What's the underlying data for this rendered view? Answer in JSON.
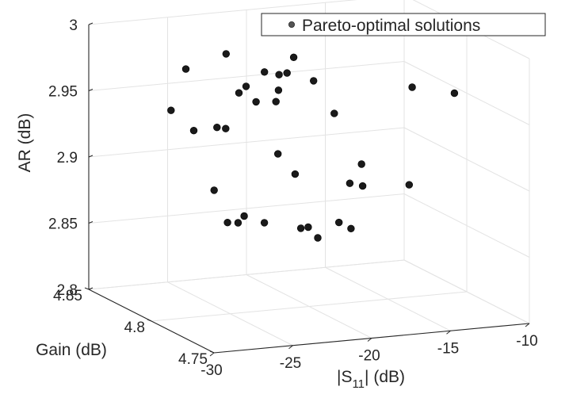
{
  "chart_data": {
    "type": "scatter",
    "projection": "3d",
    "xlabel": "|S11| (dB)",
    "ylabel": "Gain (dB)",
    "zlabel": "AR (dB)",
    "xlabel_parts": {
      "main": "|S",
      "sub": "11",
      "tail": "| (dB)"
    },
    "xlim": [
      -30,
      -10
    ],
    "ylim": [
      4.75,
      4.85
    ],
    "zlim": [
      2.8,
      3.0
    ],
    "x_ticks": [
      "-30",
      "-25",
      "-20",
      "-15",
      "-10"
    ],
    "y_ticks": [
      "4.75",
      "4.8",
      "4.85"
    ],
    "z_ticks": [
      "2.8",
      "2.85",
      "2.9",
      "2.95",
      "3"
    ],
    "grid": true,
    "legend": {
      "position": "top-right",
      "entries": [
        "Pareto-optimal solutions"
      ]
    },
    "series": [
      {
        "name": "Pareto-optimal solutions",
        "color": "#1a1a1a",
        "points": [
          {
            "x": -20.1,
            "y": 4.811,
            "z": 2.983
          },
          {
            "x": -24.4,
            "y": 4.769,
            "z": 2.983
          },
          {
            "x": -16.1,
            "y": 4.85,
            "z": 2.983
          },
          {
            "x": -26.7,
            "y": 4.814,
            "z": 2.98
          },
          {
            "x": -22.3,
            "y": 4.795,
            "z": 2.98
          },
          {
            "x": -19.0,
            "y": 4.809,
            "z": 2.965
          },
          {
            "x": -22.8,
            "y": 4.831,
            "z": 2.979
          },
          {
            "x": -25.4,
            "y": 4.788,
            "z": 2.973
          },
          {
            "x": -21.0,
            "y": 4.805,
            "z": 2.975
          },
          {
            "x": -23.2,
            "y": 4.81,
            "z": 2.965
          },
          {
            "x": -21.4,
            "y": 4.818,
            "z": 2.97
          },
          {
            "x": -27.8,
            "y": 4.812,
            "z": 2.951
          },
          {
            "x": -18.4,
            "y": 4.8,
            "z": 2.944
          },
          {
            "x": -23.6,
            "y": 4.797,
            "z": 2.96
          },
          {
            "x": -22.1,
            "y": 4.8,
            "z": 2.957
          },
          {
            "x": -13.7,
            "y": 4.797,
            "z": 2.96
          },
          {
            "x": -11.5,
            "y": 4.791,
            "z": 2.956
          },
          {
            "x": -25.6,
            "y": 4.803,
            "z": 2.94
          },
          {
            "x": -26.2,
            "y": 4.814,
            "z": 2.933
          },
          {
            "x": -23.3,
            "y": 4.825,
            "z": 2.926
          },
          {
            "x": -21.6,
            "y": 4.791,
            "z": 2.906
          },
          {
            "x": -18.1,
            "y": 4.782,
            "z": 2.914
          },
          {
            "x": -21.5,
            "y": 4.806,
            "z": 2.914
          },
          {
            "x": -26.1,
            "y": 4.799,
            "z": 2.895
          },
          {
            "x": -24.9,
            "y": 4.795,
            "z": 2.871
          },
          {
            "x": -23.9,
            "y": 4.816,
            "z": 2.86
          },
          {
            "x": -12.7,
            "y": 4.812,
            "z": 2.878
          },
          {
            "x": -17.0,
            "y": 4.795,
            "z": 2.89
          },
          {
            "x": -16.7,
            "y": 4.809,
            "z": 2.885
          },
          {
            "x": -21.0,
            "y": 4.794,
            "z": 2.863
          },
          {
            "x": -21.8,
            "y": 4.813,
            "z": 2.859
          },
          {
            "x": -26.1,
            "y": 4.775,
            "z": 2.887
          },
          {
            "x": -20.4,
            "y": 4.788,
            "z": 2.858
          },
          {
            "x": -19.5,
            "y": 4.807,
            "z": 2.856
          },
          {
            "x": -17.5,
            "y": 4.798,
            "z": 2.857
          },
          {
            "x": -18.9,
            "y": 4.79,
            "z": 2.867
          }
        ]
      }
    ]
  }
}
